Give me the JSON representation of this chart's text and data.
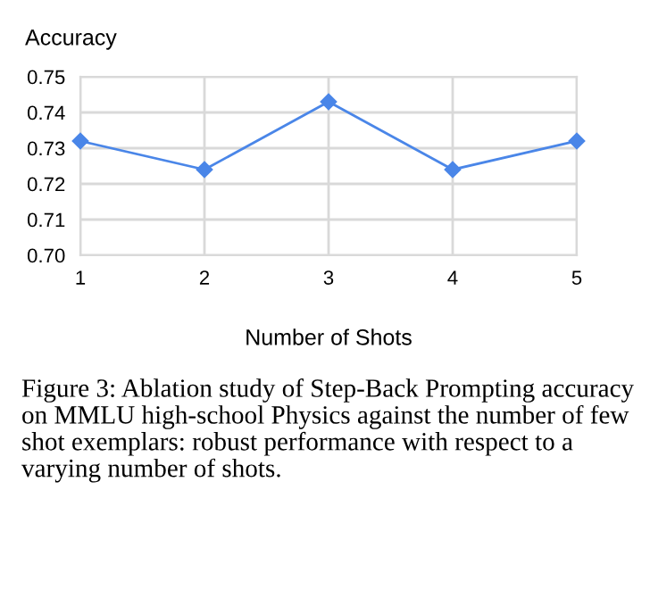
{
  "chart_data": {
    "type": "line",
    "ylabel": "Accuracy",
    "xlabel": "Number of Shots",
    "x": [
      1,
      2,
      3,
      4,
      5
    ],
    "series": [
      {
        "color": "#4a86e8",
        "values": [
          0.732,
          0.724,
          0.743,
          0.724,
          0.732
        ]
      }
    ],
    "xlim": [
      1,
      5
    ],
    "xticks": [
      1,
      2,
      3,
      4,
      5
    ],
    "ylim": [
      0.7,
      0.75
    ],
    "yticks": [
      {
        "value": 0.7,
        "label": "0.70"
      },
      {
        "value": 0.71,
        "label": "0.71"
      },
      {
        "value": 0.72,
        "label": "0.72"
      },
      {
        "value": 0.73,
        "label": "0.73"
      },
      {
        "value": 0.74,
        "label": "0.74"
      },
      {
        "value": 0.75,
        "label": "0.75"
      }
    ],
    "grid": true,
    "marker": "diamond",
    "line_style": "solid",
    "annotations": [
      "Figure 3: Ablation study of Step-Back Prompting accuracy on MMLU high-school Physics against the number of few shot exemplars: robust performance with respect to a varying number of shots."
    ]
  }
}
